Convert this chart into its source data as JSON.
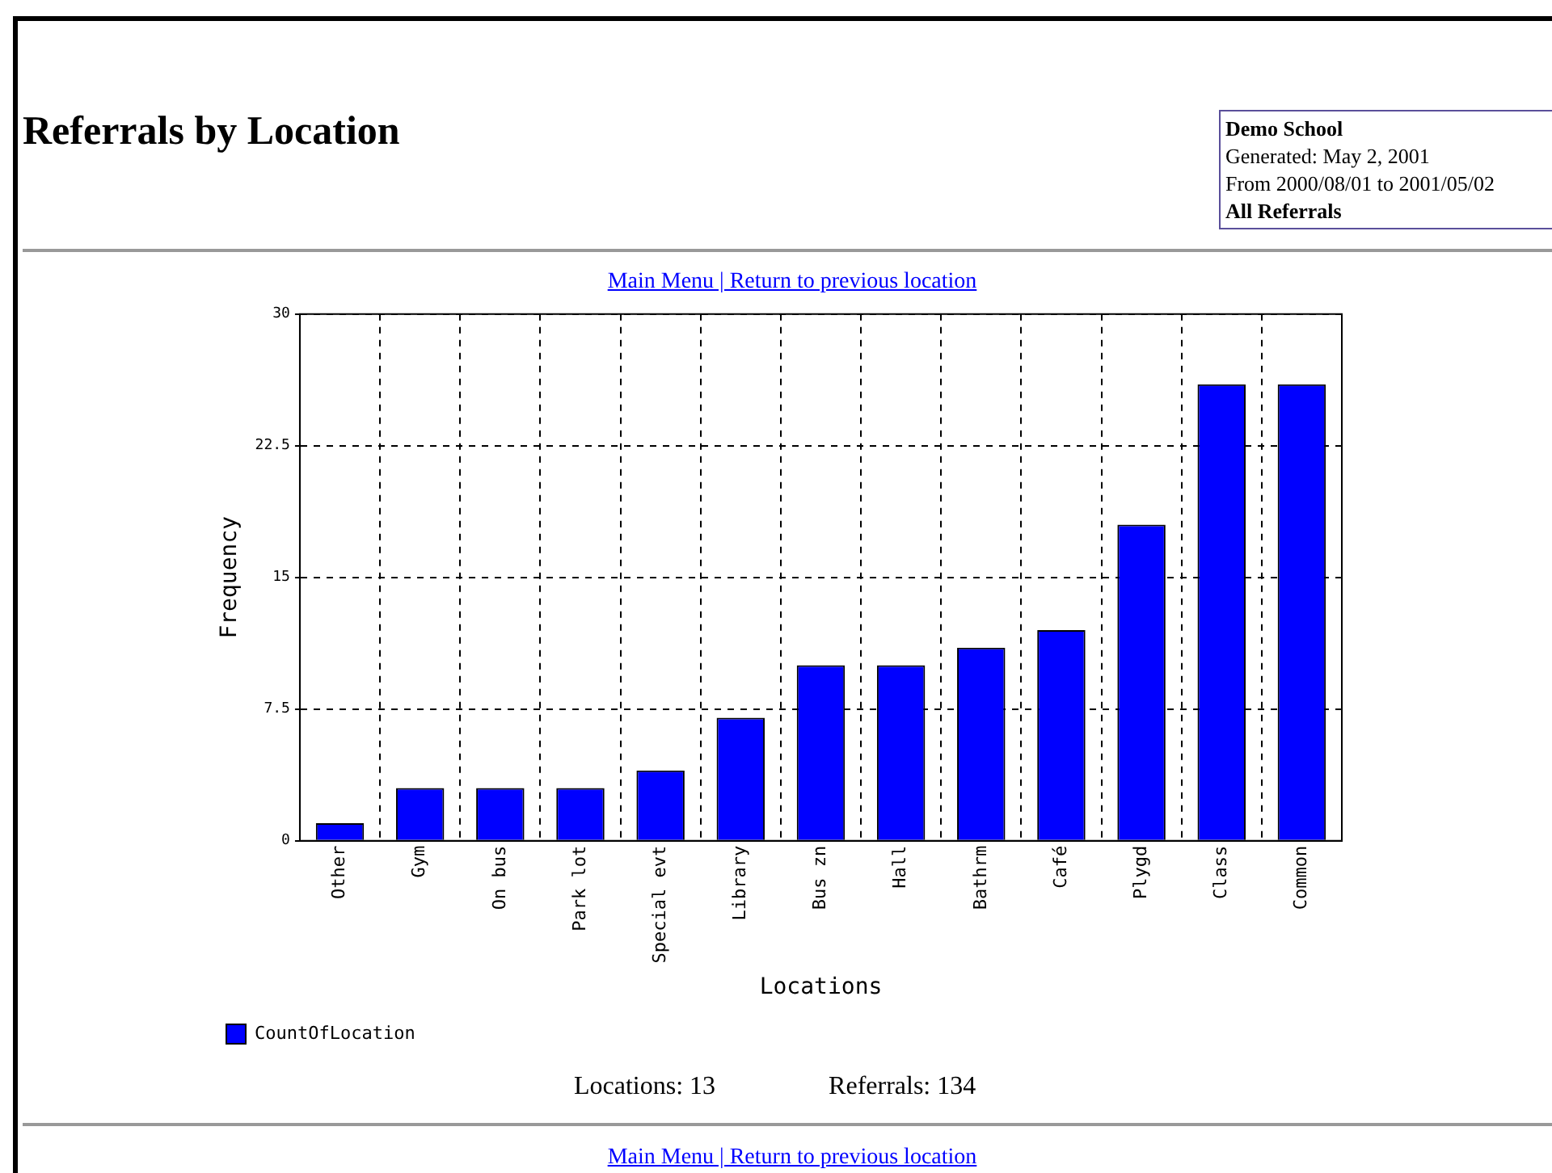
{
  "chart_data": {
    "type": "bar",
    "title": "Referrals by Location",
    "xlabel": "Locations",
    "ylabel": "Frequency",
    "categories": [
      "Other",
      "Gym",
      "On bus",
      "Park lot",
      "Special evt",
      "Library",
      "Bus zn",
      "Hall",
      "Bathrm",
      "Café",
      "Plygd",
      "Class",
      "Common"
    ],
    "series": [
      {
        "name": "CountOfLocation",
        "color": "#0000ff",
        "values": [
          1,
          3,
          3,
          3,
          4,
          7,
          10,
          10,
          11,
          12,
          18,
          26,
          26
        ]
      }
    ],
    "ylim": [
      0,
      30
    ],
    "yticks": [
      0,
      7.5,
      15,
      22.5,
      30
    ],
    "grid": true,
    "line_style": "dashed",
    "legend": "bottom left",
    "annotations": [
      "Demo School",
      "Generated: May 2, 2001",
      "From 2000/08/01 to 2001/05/02",
      "All Referrals",
      "Main Menu | Return to previous location",
      "Locations: 13",
      "Referrals: 134",
      "Main Menu | Return to previous location"
    ]
  }
}
